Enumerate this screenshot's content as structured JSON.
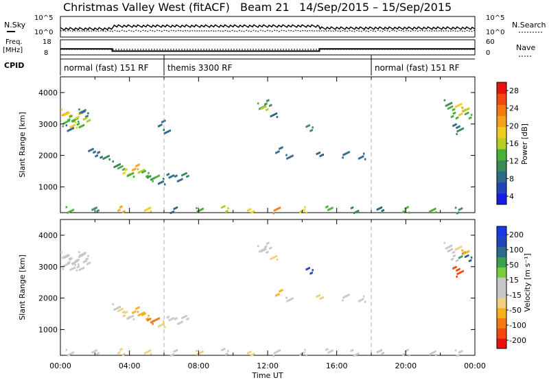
{
  "header": {
    "title": "Christmas Valley West (fitACF)",
    "beam": "Beam 21",
    "date_range": "14/Sep/2015 – 15/Sep/2015"
  },
  "labels": {
    "nsky": "N.Sky",
    "nsearch": "N.Search",
    "freq_line1": "Freq.",
    "freq_line2": "[MHz]",
    "nave": "Nave",
    "cpid": "CPID",
    "time_axis": "Time UT",
    "slant_range": "Slant Range [km]",
    "power_label": "Power [dB]",
    "velocity_label": "Velocity [m s⁻¹]"
  },
  "noise_axis": {
    "left": [
      "10^5",
      "10^0"
    ],
    "right": [
      "10^5",
      "10^0"
    ]
  },
  "freq_axis": {
    "left": [
      "18",
      "8"
    ],
    "right": [
      "60",
      "0"
    ]
  },
  "cpid_segments": [
    {
      "label": "normal (fast) 151 RF",
      "start_hour": 0,
      "end_hour": 6
    },
    {
      "label": "themis 3300 RF",
      "start_hour": 6,
      "end_hour": 18
    },
    {
      "label": "normal (fast) 151 RF",
      "start_hour": 18,
      "end_hour": 24
    }
  ],
  "freq_trace": [
    {
      "start_hour": 0,
      "end_hour": 3,
      "mhz": 12
    },
    {
      "start_hour": 3,
      "end_hour": 15,
      "mhz": 10.5
    },
    {
      "start_hour": 15,
      "end_hour": 24,
      "mhz": 12
    }
  ],
  "power_colorbar": {
    "ticks": [
      "28",
      "24",
      "20",
      "16",
      "12",
      "8",
      "4"
    ]
  },
  "velocity_colorbar": {
    "ticks": [
      "200",
      "100",
      "50",
      "15",
      "-15",
      "-50",
      "-100",
      "-200"
    ]
  },
  "colors": {
    "power": [
      "#1a1ae6",
      "#2246b8",
      "#2f6a8a",
      "#3a8a5a",
      "#4caf3a",
      "#b8cc28",
      "#f0cc1e",
      "#f5a01e",
      "#f07a14",
      "#f04a10",
      "#e81010"
    ],
    "velocity": [
      "#e81010",
      "#f04a10",
      "#f07a14",
      "#f5b020",
      "#f0d080",
      "#c8c8c8",
      "#c8c8c8",
      "#7acc3c",
      "#3aa050",
      "#2f6a8a",
      "#2246b8",
      "#1a3ae0"
    ]
  },
  "chart_data": [
    {
      "type": "scatter",
      "panel": "power",
      "title": "",
      "xlabel": "Time UT",
      "ylabel": "Slant Range [km]",
      "x_ticks": [
        "00:00",
        "04:00",
        "08:00",
        "12:00",
        "16:00",
        "20:00",
        "00:00"
      ],
      "y_ticks": [
        "1000",
        "2000",
        "3000",
        "4000"
      ],
      "xlim_hours": [
        0,
        24
      ],
      "ylim_km": [
        180,
        4500
      ],
      "colorbar": "Power [dB]",
      "clim_db": [
        0,
        32
      ],
      "series": [
        {
          "x_hours": [
            0.2,
            0.4,
            0.6,
            0.8,
            1.0,
            1.2,
            1.4,
            1.5,
            0.3,
            0.7,
            1.1
          ],
          "y_km": [
            3400,
            3300,
            3200,
            3150,
            3300,
            3450,
            3350,
            3200,
            3050,
            3000,
            2950
          ],
          "power_db": [
            22,
            20,
            14,
            12,
            18,
            10,
            8,
            16,
            12,
            20,
            14
          ]
        },
        {
          "x_hours": [
            3.2,
            3.5,
            3.8,
            4.0,
            4.3,
            4.6,
            4.9,
            5.2,
            5.5,
            5.8,
            6.3,
            6.8,
            7.2
          ],
          "y_km": [
            1750,
            1600,
            1500,
            1400,
            1650,
            1550,
            1450,
            1350,
            1300,
            1200,
            1350,
            1300,
            1400
          ],
          "power_db": [
            10,
            12,
            18,
            14,
            22,
            16,
            12,
            10,
            14,
            8,
            6,
            8,
            10
          ]
        },
        {
          "x_hours": [
            0.5,
            1.8,
            2.2,
            2.6,
            5.8,
            6.1
          ],
          "y_km": [
            2900,
            2150,
            2050,
            1950,
            3050,
            2800
          ],
          "power_db": [
            8,
            6,
            8,
            10,
            6,
            8
          ]
        },
        {
          "x_hours": [
            11.6,
            11.8,
            12.0,
            12.3,
            12.6,
            13.2,
            14.4,
            15.0,
            16.5,
            17.4
          ],
          "y_km": [
            3600,
            3500,
            3700,
            3300,
            2200,
            2000,
            2900,
            2100,
            2050,
            2000
          ],
          "power_db": [
            12,
            16,
            10,
            8,
            6,
            8,
            10,
            6,
            8,
            6
          ]
        },
        {
          "x_hours": [
            22.4,
            22.6,
            22.8,
            23.0,
            23.2,
            23.4,
            23.6,
            22.9,
            23.1
          ],
          "y_km": [
            3700,
            3500,
            3300,
            3600,
            3400,
            3500,
            3300,
            3000,
            2800
          ],
          "power_db": [
            10,
            14,
            12,
            18,
            20,
            16,
            14,
            8,
            10
          ]
        },
        {
          "x_hours": [
            0.5,
            2.0,
            3.5,
            5.0,
            6.5,
            8.0,
            9.5,
            11.0,
            12.5,
            14.0,
            15.5,
            17.0,
            18.5,
            20.0,
            21.5,
            23.0
          ],
          "y_km": [
            300,
            280,
            320,
            300,
            290,
            310,
            330,
            300,
            280,
            300,
            320,
            290,
            310,
            300,
            290,
            280
          ],
          "power_db": [
            14,
            10,
            22,
            18,
            8,
            12,
            16,
            20,
            24,
            18,
            12,
            10,
            8,
            12,
            14,
            10
          ]
        }
      ]
    },
    {
      "type": "scatter",
      "panel": "velocity",
      "title": "",
      "xlabel": "Time UT",
      "ylabel": "Slant Range [km]",
      "x_ticks": [
        "00:00",
        "04:00",
        "08:00",
        "12:00",
        "16:00",
        "20:00",
        "00:00"
      ],
      "y_ticks": [
        "1000",
        "2000",
        "3000",
        "4000"
      ],
      "xlim_hours": [
        0,
        24
      ],
      "ylim_km": [
        180,
        4500
      ],
      "colorbar": "Velocity [m s⁻¹]",
      "clim_ms": [
        -250,
        250
      ],
      "series": [
        {
          "x_hours": [
            0.2,
            0.4,
            0.6,
            0.8,
            1.0,
            1.2,
            1.4,
            1.5,
            0.3,
            0.7,
            1.1
          ],
          "y_km": [
            3400,
            3300,
            3200,
            3150,
            3300,
            3450,
            3350,
            3200,
            3050,
            3000,
            2950
          ],
          "velocity_ms": [
            0,
            5,
            -5,
            0,
            10,
            -10,
            0,
            5,
            -5,
            0,
            5
          ]
        },
        {
          "x_hours": [
            3.2,
            3.5,
            3.8,
            4.0,
            4.3,
            4.6,
            4.9,
            5.2,
            5.5,
            5.8,
            6.3,
            6.8,
            7.2
          ],
          "y_km": [
            1750,
            1600,
            1500,
            1400,
            1650,
            1550,
            1450,
            1350,
            1300,
            1200,
            1350,
            1300,
            1400
          ],
          "velocity_ms": [
            -40,
            -60,
            -80,
            -20,
            -90,
            -120,
            -100,
            -140,
            -160,
            -80,
            -30,
            -20,
            -10
          ]
        },
        {
          "x_hours": [
            11.6,
            11.8,
            12.0,
            12.3,
            12.6,
            13.2,
            14.4,
            15.0,
            16.5,
            17.4
          ],
          "y_km": [
            3600,
            3500,
            3700,
            3300,
            2200,
            2000,
            2900,
            2100,
            2050,
            2000
          ],
          "velocity_ms": [
            0,
            -20,
            10,
            -60,
            -120,
            -40,
            180,
            -60,
            -30,
            20
          ]
        },
        {
          "x_hours": [
            22.4,
            22.6,
            22.8,
            23.0,
            23.2,
            23.4,
            23.6,
            22.9,
            23.1
          ],
          "y_km": [
            3700,
            3500,
            3300,
            3600,
            3400,
            3500,
            3300,
            3000,
            2800
          ],
          "velocity_ms": [
            0,
            5,
            -30,
            -60,
            120,
            -90,
            150,
            -200,
            -180
          ]
        },
        {
          "x_hours": [
            0.5,
            2.0,
            3.5,
            5.0,
            6.5,
            8.0,
            9.5,
            11.0,
            12.5,
            14.0,
            15.5,
            17.0,
            18.5,
            20.0,
            21.5,
            23.0
          ],
          "y_km": [
            300,
            280,
            320,
            300,
            290,
            310,
            330,
            300,
            280,
            300,
            320,
            290,
            310,
            300,
            290,
            280
          ],
          "velocity_ms": [
            -40,
            -30,
            -60,
            -50,
            -20,
            -70,
            -40,
            -80,
            -30,
            30,
            40,
            20,
            -30,
            -40,
            -20,
            -30
          ]
        }
      ]
    }
  ]
}
